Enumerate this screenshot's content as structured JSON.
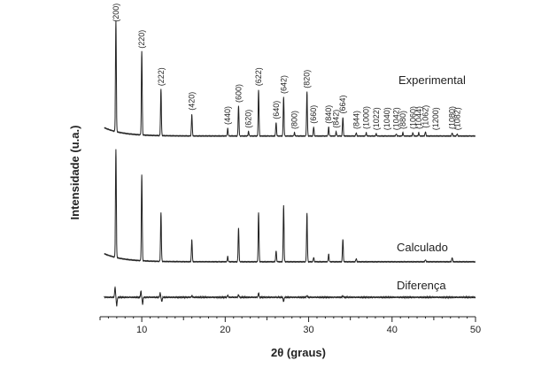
{
  "chart_data": {
    "type": "line",
    "xlabel": "2θ (graus)",
    "ylabel": "Intensidade (u.a.)",
    "xlim": [
      5,
      50
    ],
    "xticks": [
      10,
      20,
      30,
      40,
      50
    ],
    "series": [
      {
        "name": "Experimental",
        "baseline": 0.05,
        "peaks": [
          {
            "x": 6.9,
            "y": 1.0
          },
          {
            "x": 10.0,
            "y": 0.76
          },
          {
            "x": 12.3,
            "y": 0.42
          },
          {
            "x": 16.0,
            "y": 0.2
          },
          {
            "x": 20.3,
            "y": 0.07
          },
          {
            "x": 21.6,
            "y": 0.27
          },
          {
            "x": 22.8,
            "y": 0.04
          },
          {
            "x": 24.0,
            "y": 0.42
          },
          {
            "x": 26.1,
            "y": 0.12
          },
          {
            "x": 27.0,
            "y": 0.35
          },
          {
            "x": 28.3,
            "y": 0.03
          },
          {
            "x": 29.8,
            "y": 0.4
          },
          {
            "x": 30.6,
            "y": 0.08
          },
          {
            "x": 32.4,
            "y": 0.08
          },
          {
            "x": 33.3,
            "y": 0.04
          },
          {
            "x": 34.1,
            "y": 0.17
          },
          {
            "x": 35.7,
            "y": 0.03
          },
          {
            "x": 36.9,
            "y": 0.03
          },
          {
            "x": 38.1,
            "y": 0.02
          },
          {
            "x": 40.5,
            "y": 0.02
          },
          {
            "x": 41.3,
            "y": 0.03
          },
          {
            "x": 42.5,
            "y": 0.03
          },
          {
            "x": 43.2,
            "y": 0.03
          },
          {
            "x": 44.0,
            "y": 0.04
          },
          {
            "x": 47.2,
            "y": 0.03
          },
          {
            "x": 47.8,
            "y": 0.02
          }
        ]
      },
      {
        "name": "Calculado",
        "baseline": 0.05,
        "peaks": [
          {
            "x": 6.9,
            "y": 1.0
          },
          {
            "x": 10.0,
            "y": 0.8
          },
          {
            "x": 12.3,
            "y": 0.45
          },
          {
            "x": 16.0,
            "y": 0.21
          },
          {
            "x": 20.3,
            "y": 0.05
          },
          {
            "x": 21.6,
            "y": 0.31
          },
          {
            "x": 24.0,
            "y": 0.46
          },
          {
            "x": 26.1,
            "y": 0.1
          },
          {
            "x": 27.0,
            "y": 0.52
          },
          {
            "x": 29.8,
            "y": 0.45
          },
          {
            "x": 30.6,
            "y": 0.04
          },
          {
            "x": 32.4,
            "y": 0.07
          },
          {
            "x": 34.1,
            "y": 0.21
          },
          {
            "x": 35.7,
            "y": 0.03
          },
          {
            "x": 44.0,
            "y": 0.02
          },
          {
            "x": 47.2,
            "y": 0.04
          }
        ]
      },
      {
        "name": "Diferença",
        "baseline": 0,
        "peaks": [
          {
            "x": 6.8,
            "y": 0.6
          },
          {
            "x": 7.0,
            "y": -0.5
          },
          {
            "x": 9.9,
            "y": 0.35
          },
          {
            "x": 10.1,
            "y": -0.4
          },
          {
            "x": 12.2,
            "y": 0.25
          },
          {
            "x": 12.4,
            "y": -0.25
          },
          {
            "x": 16.0,
            "y": 0.1
          },
          {
            "x": 20.3,
            "y": 0.12
          },
          {
            "x": 21.6,
            "y": 0.15
          },
          {
            "x": 24.0,
            "y": 0.25
          },
          {
            "x": 27.0,
            "y": -0.25
          },
          {
            "x": 29.8,
            "y": 0.1
          },
          {
            "x": 34.1,
            "y": 0.08
          }
        ]
      }
    ],
    "hkl_labels": [
      {
        "text": "(200)",
        "x": 6.9,
        "y": 1.0
      },
      {
        "text": "(220)",
        "x": 10.0,
        "y": 0.76
      },
      {
        "text": "(222)",
        "x": 12.3,
        "y": 0.42
      },
      {
        "text": "(420)",
        "x": 16.0,
        "y": 0.2
      },
      {
        "text": "(440)",
        "x": 20.3,
        "y": 0.07
      },
      {
        "text": "(600)",
        "x": 21.6,
        "y": 0.27
      },
      {
        "text": "(620)",
        "x": 22.8,
        "y": 0.04
      },
      {
        "text": "(622)",
        "x": 24.0,
        "y": 0.42
      },
      {
        "text": "(640)",
        "x": 26.1,
        "y": 0.12
      },
      {
        "text": "(642)",
        "x": 27.0,
        "y": 0.35
      },
      {
        "text": "(800)",
        "x": 28.3,
        "y": 0.03
      },
      {
        "text": "(820)",
        "x": 29.8,
        "y": 0.4
      },
      {
        "text": "(660)",
        "x": 30.6,
        "y": 0.08
      },
      {
        "text": "(840)",
        "x": 32.4,
        "y": 0.08
      },
      {
        "text": "(842)",
        "x": 33.3,
        "y": 0.04
      },
      {
        "text": "(664)",
        "x": 34.1,
        "y": 0.17
      },
      {
        "text": "(844)",
        "x": 35.7,
        "y": 0.03
      },
      {
        "text": "(1000)",
        "x": 36.9,
        "y": 0.03
      },
      {
        "text": "(1022)",
        "x": 38.1,
        "y": 0.02
      },
      {
        "text": "(1040)",
        "x": 39.4,
        "y": 0.02
      },
      {
        "text": "(1042)",
        "x": 40.5,
        "y": 0.02
      },
      {
        "text": "(880)",
        "x": 41.3,
        "y": 0.03
      },
      {
        "text": "(1060)",
        "x": 42.5,
        "y": 0.03
      },
      {
        "text": "(1044)",
        "x": 43.2,
        "y": 0.03
      },
      {
        "text": "(1062)",
        "x": 44.0,
        "y": 0.04
      },
      {
        "text": "(1200)",
        "x": 45.2,
        "y": 0.02
      },
      {
        "text": "(1080)",
        "x": 47.2,
        "y": 0.03
      },
      {
        "text": "(1082)",
        "x": 47.8,
        "y": 0.02
      }
    ],
    "grid": false,
    "legend": "inline-right",
    "line_color": "#222222"
  }
}
